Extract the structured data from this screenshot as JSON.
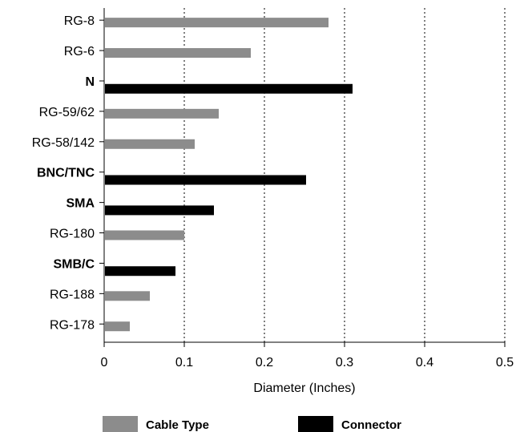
{
  "chart_data": {
    "type": "bar",
    "orientation": "horizontal",
    "title": "",
    "xlabel": "Diameter (Inches)",
    "ylabel": "",
    "xlim": [
      0,
      0.5
    ],
    "x_ticks": [
      "0",
      "0.1",
      "0.2",
      "0.3",
      "0.4",
      "0.5"
    ],
    "grid": "vertical dashed",
    "legend_position": "bottom",
    "series": [
      {
        "name": "Cable Type",
        "color": "#8c8c8c"
      },
      {
        "name": "Connector",
        "color": "#000000"
      }
    ],
    "categories": [
      {
        "label": "RG-8",
        "value": 0.28,
        "series": "Cable Type"
      },
      {
        "label": "RG-6",
        "value": 0.183,
        "series": "Cable Type"
      },
      {
        "label": "N",
        "value": 0.31,
        "series": "Connector"
      },
      {
        "label": "RG-59/62",
        "value": 0.143,
        "series": "Cable Type"
      },
      {
        "label": "RG-58/142",
        "value": 0.113,
        "series": "Cable Type"
      },
      {
        "label": "BNC/TNC",
        "value": 0.252,
        "series": "Connector"
      },
      {
        "label": "SMA",
        "value": 0.137,
        "series": "Connector"
      },
      {
        "label": "RG-180",
        "value": 0.1,
        "series": "Cable Type"
      },
      {
        "label": "SMB/C",
        "value": 0.089,
        "series": "Connector"
      },
      {
        "label": "RG-188",
        "value": 0.057,
        "series": "Cable Type"
      },
      {
        "label": "RG-178",
        "value": 0.032,
        "series": "Cable Type"
      }
    ]
  }
}
